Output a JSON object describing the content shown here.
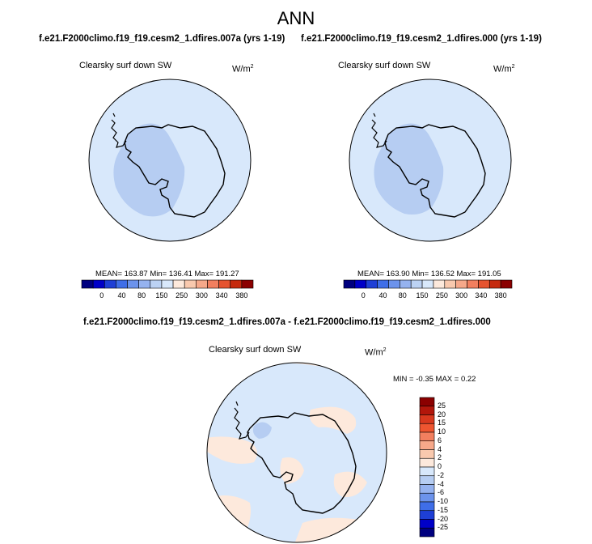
{
  "title": "ANN",
  "panels": [
    {
      "case_title": "f.e21.F2000climo.f19_f19.cesm2_1.dfires.007a (yrs 1-19)",
      "variable": "Clearsky surf down SW",
      "units_base": "W/m",
      "units_exp": "2",
      "stats_text": "MEAN= 163.87  Min= 136.41  Max= 191.27",
      "colorbar": {
        "colors": [
          "#00007f",
          "#0000c8",
          "#1e3fd6",
          "#3f6ee8",
          "#6c93ec",
          "#95b2ef",
          "#bcd2f3",
          "#d8e8fb",
          "#fde9dc",
          "#f9c9ae",
          "#f6a88a",
          "#f27f5f",
          "#e5532f",
          "#c52a0e",
          "#8b0000"
        ],
        "labels": [
          "0",
          "40",
          "80",
          "150",
          "250",
          "300",
          "340",
          "380"
        ]
      }
    },
    {
      "case_title": "f.e21.F2000climo.f19_f19.cesm2_1.dfires.000 (yrs 1-19)",
      "variable": "Clearsky surf down SW",
      "units_base": "W/m",
      "units_exp": "2",
      "stats_text": "MEAN= 163.90  Min= 136.52  Max= 191.05",
      "colorbar": {
        "colors": [
          "#00007f",
          "#0000c8",
          "#1e3fd6",
          "#3f6ee8",
          "#6c93ec",
          "#95b2ef",
          "#bcd2f3",
          "#d8e8fb",
          "#fde9dc",
          "#f9c9ae",
          "#f6a88a",
          "#f27f5f",
          "#e5532f",
          "#c52a0e",
          "#8b0000"
        ],
        "labels": [
          "0",
          "40",
          "80",
          "150",
          "250",
          "300",
          "340",
          "380"
        ]
      }
    }
  ],
  "diff": {
    "title": "f.e21.F2000climo.f19_f19.cesm2_1.dfires.007a - f.e21.F2000climo.f19_f19.cesm2_1.dfires.000",
    "variable": "Clearsky surf down SW",
    "units_base": "W/m",
    "units_exp": "2",
    "minmax_text": "MIN = -0.35 MAX =   0.22",
    "colorbar": {
      "colors": [
        "#8b0000",
        "#b2160b",
        "#d8381e",
        "#ee5530",
        "#f27f5f",
        "#f6a88a",
        "#f9c9ae",
        "#fde9dc",
        "#d8e8fb",
        "#b6cdf2",
        "#95b2ef",
        "#6c93ec",
        "#3f6ee8",
        "#1e3fd6",
        "#0000c8",
        "#00007f"
      ],
      "labels": [
        "25",
        "20",
        "15",
        "10",
        "6",
        "4",
        "2",
        "0",
        "-2",
        "-4",
        "-6",
        "-10",
        "-15",
        "-20",
        "-25"
      ]
    }
  },
  "colors": {
    "field_light_blue": "#d8e8fb",
    "field_mid_blue": "#b6cdf2",
    "field_peach": "#fde9dc"
  }
}
